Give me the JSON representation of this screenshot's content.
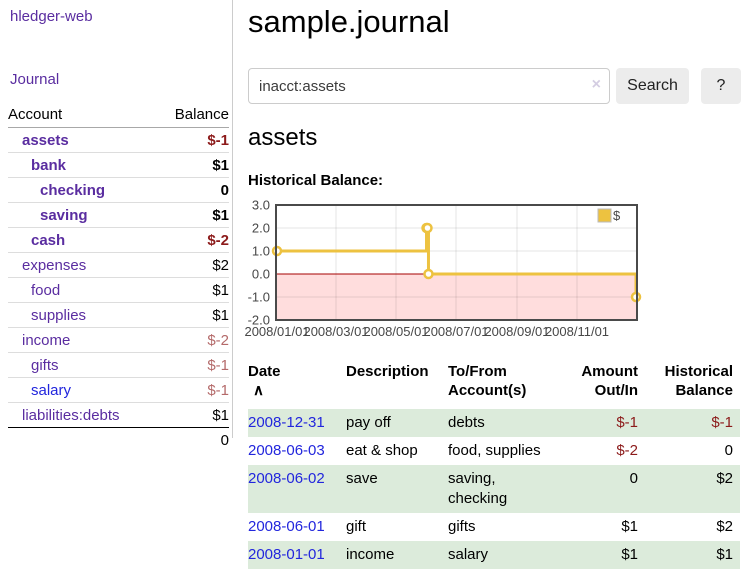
{
  "app": {
    "title": "hledger-web",
    "nav_journal": "Journal"
  },
  "sidebar": {
    "account_header": "Account",
    "balance_header": "Balance",
    "accounts": [
      {
        "name": "assets",
        "balance": "$-1",
        "depth": 1,
        "bold": true,
        "balance_style": "neg-strong",
        "link_color": "purple"
      },
      {
        "name": "bank",
        "balance": "$1",
        "depth": 2,
        "bold": true,
        "balance_style": "",
        "link_color": "purple"
      },
      {
        "name": "checking",
        "balance": "0",
        "depth": 3,
        "bold": true,
        "balance_style": "",
        "link_color": "purple"
      },
      {
        "name": "saving",
        "balance": "$1",
        "depth": 3,
        "bold": true,
        "balance_style": "",
        "link_color": "purple"
      },
      {
        "name": "cash",
        "balance": "$-2",
        "depth": 2,
        "bold": true,
        "balance_style": "neg-strong",
        "link_color": "purple"
      },
      {
        "name": "expenses",
        "balance": "$2",
        "depth": 1,
        "bold": false,
        "balance_style": "",
        "link_color": "purple"
      },
      {
        "name": "food",
        "balance": "$1",
        "depth": 2,
        "bold": false,
        "balance_style": "",
        "link_color": "purple"
      },
      {
        "name": "supplies",
        "balance": "$1",
        "depth": 2,
        "bold": false,
        "balance_style": "",
        "link_color": "purple"
      },
      {
        "name": "income",
        "balance": "$-2",
        "depth": 1,
        "bold": false,
        "balance_style": "neg-soft",
        "link_color": "purple"
      },
      {
        "name": "gifts",
        "balance": "$-1",
        "depth": 2,
        "bold": false,
        "balance_style": "neg-soft",
        "link_color": "purple"
      },
      {
        "name": "salary",
        "balance": "$-1",
        "depth": 2,
        "bold": false,
        "balance_style": "neg-soft",
        "link_color": "blue"
      },
      {
        "name": "liabilities:debts",
        "balance": "$1",
        "depth": 1,
        "bold": false,
        "balance_style": "",
        "link_color": "purple"
      }
    ],
    "total": "0"
  },
  "main": {
    "title": "sample.journal",
    "search": {
      "value": "inacct:assets",
      "clear_icon": "×",
      "search_button": "Search",
      "help_button": "?"
    },
    "account_heading": "assets",
    "chart_heading": "Historical Balance:"
  },
  "chart_data": {
    "type": "line",
    "title": "Historical Balance",
    "step": true,
    "x_range": [
      "2008-01-01",
      "2009-01-01"
    ],
    "ylim": [
      -2,
      3
    ],
    "yticks": [
      "3.0",
      "2.0",
      "1.0",
      "0.0",
      "-1.0",
      "-2.0"
    ],
    "xticks": [
      "2008/01/01",
      "2008/03/01",
      "2008/05/01",
      "2008/07/01",
      "2008/09/01",
      "2008/11/01"
    ],
    "series": [
      {
        "name": "$",
        "color": "#edc240",
        "points": [
          [
            "2008-01-01",
            1
          ],
          [
            "2008-06-01",
            2
          ],
          [
            "2008-06-02",
            2
          ],
          [
            "2008-06-03",
            0
          ],
          [
            "2008-12-31",
            -1
          ]
        ]
      }
    ],
    "legend": "$",
    "legend_position": "top-right",
    "grid": true,
    "negative_region_color": "#ffdddd",
    "zero_line_color": "#a40000",
    "axis_text_color": "#474747",
    "border_color": "#4a4a4a"
  },
  "register": {
    "headers": {
      "date": "Date",
      "sort_icon": "∧",
      "description": "Description",
      "account_line1": "To/From",
      "account_line2": "Account(s)",
      "amount_line1": "Amount",
      "amount_line2": "Out/In",
      "balance_line1": "Historical",
      "balance_line2": "Balance"
    },
    "rows": [
      {
        "date": "2008-12-31",
        "description": "pay off",
        "accounts": "debts",
        "amount": "$-1",
        "amount_negative": true,
        "balance": "$-1",
        "balance_negative": true
      },
      {
        "date": "2008-06-03",
        "description": "eat & shop",
        "accounts": "food, supplies",
        "amount": "$-2",
        "amount_negative": true,
        "balance": "0",
        "balance_negative": false
      },
      {
        "date": "2008-06-02",
        "description": "save",
        "accounts": "saving, checking",
        "amount": "0",
        "amount_negative": false,
        "balance": "$2",
        "balance_negative": false
      },
      {
        "date": "2008-06-01",
        "description": "gift",
        "accounts": "gifts",
        "amount": "$1",
        "amount_negative": false,
        "balance": "$2",
        "balance_negative": false
      },
      {
        "date": "2008-01-01",
        "description": "income",
        "accounts": "salary",
        "amount": "$1",
        "amount_negative": false,
        "balance": "$1",
        "balance_negative": false
      }
    ]
  }
}
